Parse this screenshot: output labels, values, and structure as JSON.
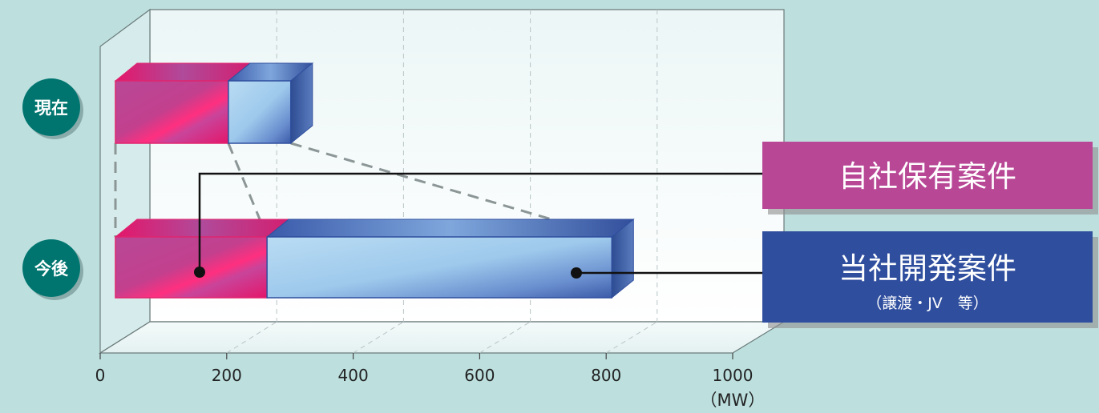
{
  "chart_data": {
    "type": "bar",
    "orientation": "horizontal",
    "stacked": true,
    "three_d": true,
    "categories": [
      "現在",
      "今後"
    ],
    "series": [
      {
        "name": "自社保有案件",
        "values": [
          190,
          255
        ]
      },
      {
        "name": "当社開発案件（譲渡・JV 等）",
        "values": [
          105,
          580
        ]
      }
    ],
    "x_ticks": [
      "0",
      "200",
      "400",
      "600",
      "800",
      "1000"
    ],
    "xlim": [
      0,
      1000
    ],
    "x_unit": "（MW）",
    "grid": true,
    "legend_position": "right",
    "colors": {
      "series1": "#b84896",
      "series1_front_light": "#e2207a",
      "series2": "#2f4e9e",
      "series2_front_light": "#9fcbee",
      "category_badge": "#00756f",
      "background": "#bde0df"
    }
  },
  "legend": {
    "own_label": "自社保有案件",
    "dev_label": "当社開発案件",
    "dev_sublabel": "（譲渡・JV　等）"
  }
}
